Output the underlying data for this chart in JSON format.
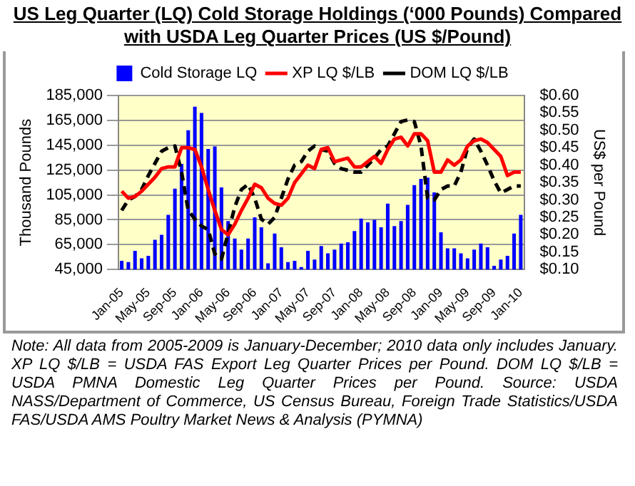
{
  "chart_data": {
    "type": "bar",
    "title": "US Leg Quarter (LQ) Cold Storage Holdings (‘000 Pounds) Compared with USDA Leg Quarter Prices (US $/Pound)",
    "categories": [
      "Jan-05",
      null,
      null,
      null,
      "May-05",
      null,
      null,
      null,
      "Sep-05",
      null,
      null,
      null,
      "Jan-06",
      null,
      null,
      null,
      "May-06",
      null,
      null,
      null,
      "Sep-06",
      null,
      null,
      null,
      "Jan-07",
      null,
      null,
      null,
      "May-07",
      null,
      null,
      null,
      "Sep-07",
      null,
      null,
      null,
      "Jan-08",
      null,
      null,
      null,
      "May-08",
      null,
      null,
      null,
      "Sep-08",
      null,
      null,
      null,
      "Jan-09",
      null,
      null,
      null,
      "May-09",
      null,
      null,
      null,
      "Sep-09",
      null,
      null,
      null,
      "Jan-10"
    ],
    "series": [
      {
        "name": "Cold Storage LQ",
        "color": "#0000ff",
        "values": [
          52000,
          51000,
          60000,
          54000,
          56000,
          69000,
          73000,
          89000,
          110000,
          130000,
          157000,
          176000,
          171000,
          142000,
          144000,
          111000,
          84000,
          70000,
          61000,
          70000,
          87000,
          79000,
          50000,
          74000,
          63000,
          51000,
          52000,
          47000,
          60000,
          53000,
          64000,
          58000,
          61000,
          66000,
          67000,
          76000,
          86000,
          83000,
          85000,
          79000,
          98000,
          80000,
          84000,
          97000,
          113000,
          118000,
          119000,
          107000,
          75000,
          62000,
          62000,
          58000,
          54000,
          61000,
          66000,
          63000,
          48000,
          53000,
          56000,
          74000,
          89000
        ]
      },
      {
        "type": "line",
        "name": "XP LQ $/LB",
        "color": "#ff0000",
        "axis": "y2",
        "line_style": "solid",
        "values": [
          0.325,
          0.305,
          0.31,
          0.325,
          0.345,
          0.365,
          0.39,
          0.395,
          0.395,
          0.45,
          0.45,
          0.445,
          0.395,
          0.33,
          0.27,
          0.215,
          0.2,
          0.23,
          0.27,
          0.305,
          0.345,
          0.335,
          0.305,
          0.29,
          0.285,
          0.305,
          0.35,
          0.375,
          0.4,
          0.39,
          0.445,
          0.45,
          0.41,
          0.415,
          0.42,
          0.395,
          0.395,
          0.41,
          0.425,
          0.405,
          0.445,
          0.475,
          0.48,
          0.455,
          0.49,
          0.49,
          0.47,
          0.38,
          0.38,
          0.415,
          0.4,
          0.415,
          0.455,
          0.47,
          0.475,
          0.465,
          0.445,
          0.425,
          0.37,
          0.38,
          0.38
        ]
      },
      {
        "type": "line",
        "name": "DOM LQ $/LB",
        "color": "#000000",
        "axis": "y2",
        "line_style": "dashed",
        "values": [
          0.27,
          0.3,
          0.31,
          0.33,
          0.37,
          0.405,
          0.44,
          0.45,
          0.455,
          0.38,
          0.27,
          0.245,
          0.225,
          0.215,
          0.145,
          0.13,
          0.205,
          0.28,
          0.33,
          0.345,
          0.305,
          0.245,
          0.23,
          0.25,
          0.305,
          0.36,
          0.4,
          0.41,
          0.44,
          0.455,
          0.445,
          0.44,
          0.405,
          0.39,
          0.385,
          0.38,
          0.38,
          0.4,
          0.42,
          0.445,
          0.455,
          0.49,
          0.525,
          0.53,
          0.525,
          0.455,
          0.305,
          0.3,
          0.33,
          0.34,
          0.34,
          0.38,
          0.45,
          0.475,
          0.44,
          0.4,
          0.355,
          0.32,
          0.33,
          0.34,
          0.34
        ]
      }
    ],
    "ylabel": "Thousand Pounds",
    "y2label": "US$ per Pound",
    "ylim": [
      45000,
      185000
    ],
    "yticks": [
      {
        "value": 45000,
        "label": "45,000"
      },
      {
        "value": 65000,
        "label": "65,000"
      },
      {
        "value": 85000,
        "label": "85,000"
      },
      {
        "value": 105000,
        "label": "105,000"
      },
      {
        "value": 125000,
        "label": "125,000"
      },
      {
        "value": 145000,
        "label": "145,000"
      },
      {
        "value": 165000,
        "label": "165,000"
      },
      {
        "value": 185000,
        "label": "185,000"
      }
    ],
    "y2lim": [
      0.1,
      0.6
    ],
    "y2ticks": [
      {
        "value": 0.1,
        "label": "$0.10"
      },
      {
        "value": 0.15,
        "label": "$0.15"
      },
      {
        "value": 0.2,
        "label": "$0.20"
      },
      {
        "value": 0.25,
        "label": "$0.25"
      },
      {
        "value": 0.3,
        "label": "$0.30"
      },
      {
        "value": 0.35,
        "label": "$0.35"
      },
      {
        "value": 0.4,
        "label": "$0.40"
      },
      {
        "value": 0.45,
        "label": "$0.45"
      },
      {
        "value": 0.5,
        "label": "$0.50"
      },
      {
        "value": 0.55,
        "label": "$0.55"
      },
      {
        "value": 0.6,
        "label": "$0.60"
      }
    ],
    "grid": "y",
    "legend": "top",
    "marker": "none",
    "annotations": [
      "Note: All data from 2005-2009 is January-December; 2010 data only includes January. XP LQ $/LB = USDA FAS Export Leg Quarter Prices per Pound. DOM LQ $/LB = USDA PMNA Domestic Leg Quarter Prices per Pound. Source: USDA NASS/Department of Commerce, US Census Bureau, Foreign Trade Statistics/USDA FAS/USDA AMS Poultry Market News & Analysis (PYMNA)"
    ]
  }
}
